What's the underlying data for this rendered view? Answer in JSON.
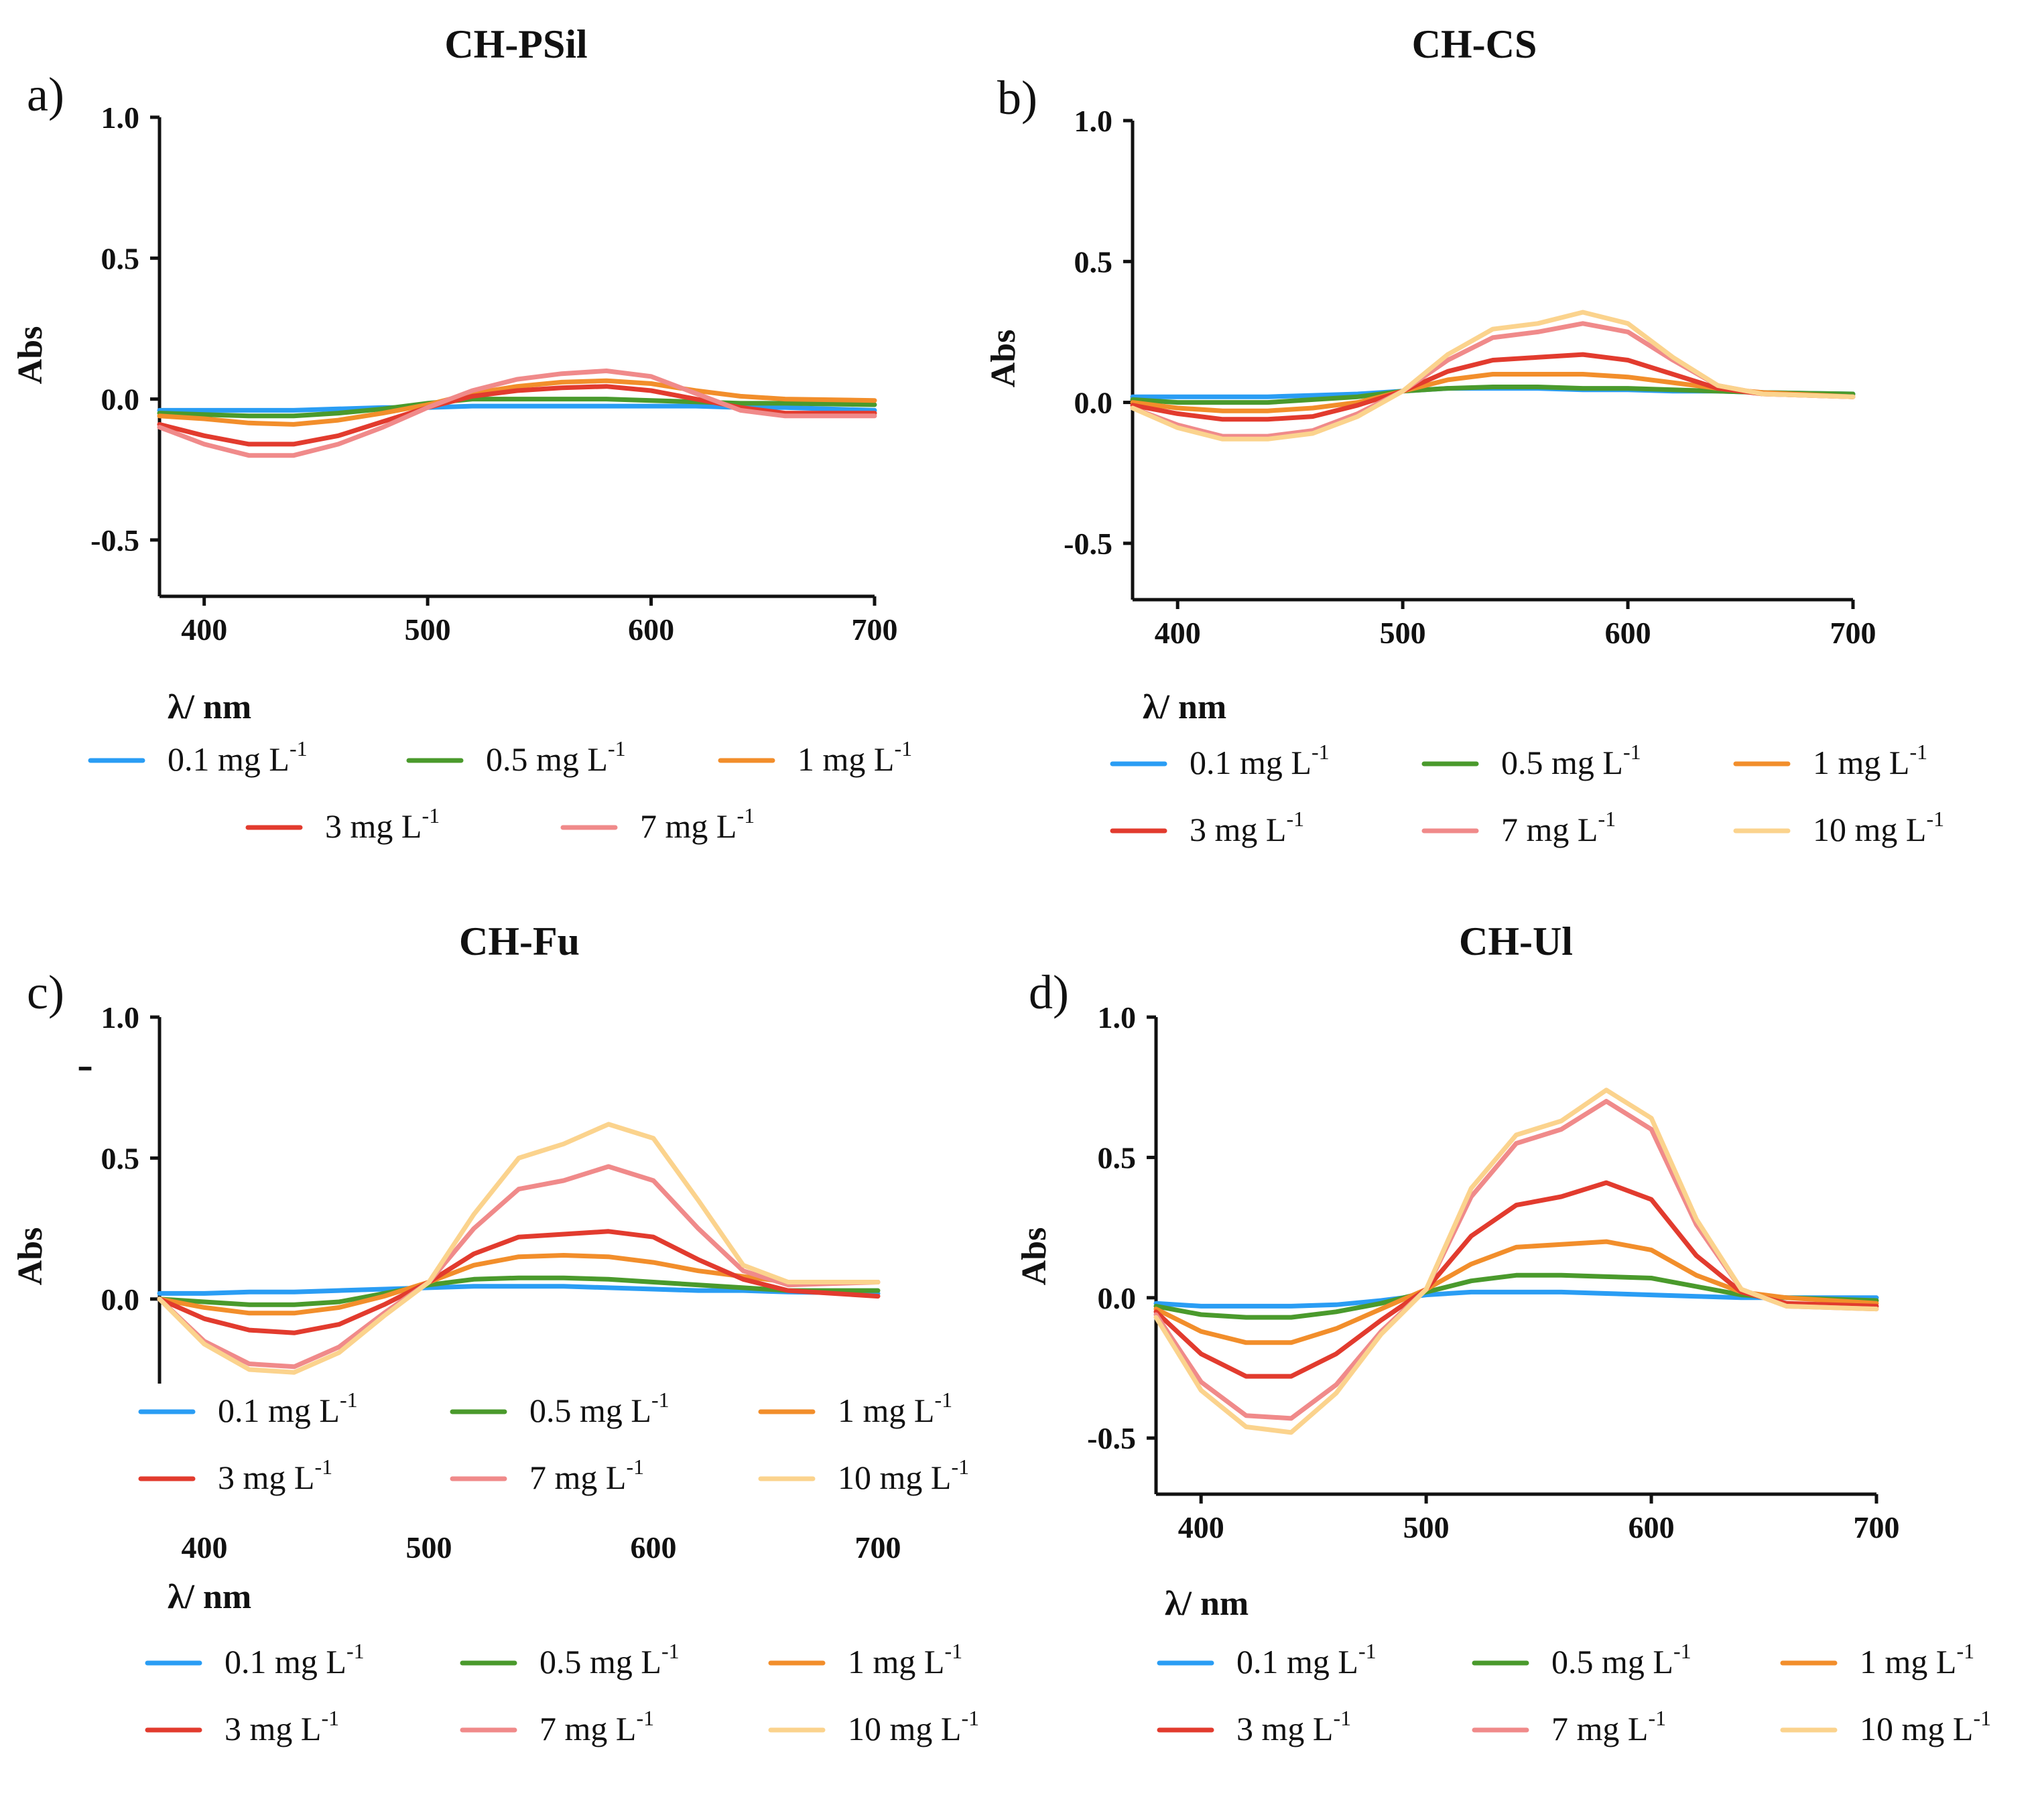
{
  "figure": {
    "stray_mark": "-"
  },
  "chart_data": [
    {
      "panel": "a)",
      "type": "line",
      "title": "CH-PSil",
      "xlabel": "λ/ nm",
      "ylabel": "Abs",
      "xlim": [
        380,
        700
      ],
      "ylim": [
        -0.7,
        1.0
      ],
      "xticks": [
        "400",
        "500",
        "600",
        "700"
      ],
      "yticks": [
        "1.0",
        "0.5",
        "0.0",
        "-0.5"
      ],
      "legend": [
        {
          "text": "0.1 mg L",
          "sup": "-1"
        },
        {
          "text": "0.5 mg L",
          "sup": "-1"
        },
        {
          "text": "1 mg L",
          "sup": "-1"
        },
        {
          "text": "3 mg L",
          "sup": "-1"
        },
        {
          "text": "7 mg L",
          "sup": "-1"
        }
      ],
      "x": [
        380,
        400,
        420,
        440,
        460,
        480,
        500,
        520,
        540,
        560,
        580,
        600,
        620,
        640,
        660,
        700
      ],
      "series": [
        {
          "name": "0.1 mg L-1",
          "color": "#2a9df4",
          "values": [
            -0.04,
            -0.04,
            -0.04,
            -0.04,
            -0.035,
            -0.03,
            -0.03,
            -0.025,
            -0.025,
            -0.025,
            -0.025,
            -0.025,
            -0.025,
            -0.03,
            -0.03,
            -0.04
          ]
        },
        {
          "name": "0.5 mg L-1",
          "color": "#4a9a2c",
          "values": [
            -0.05,
            -0.055,
            -0.06,
            -0.06,
            -0.05,
            -0.035,
            -0.015,
            0.0,
            0.0,
            0.0,
            0.0,
            -0.005,
            -0.01,
            -0.015,
            -0.015,
            -0.02
          ]
        },
        {
          "name": "1 mg L-1",
          "color": "#f28e2b",
          "values": [
            -0.06,
            -0.07,
            -0.085,
            -0.09,
            -0.075,
            -0.05,
            -0.02,
            0.02,
            0.045,
            0.06,
            0.065,
            0.055,
            0.03,
            0.01,
            0.0,
            -0.005
          ]
        },
        {
          "name": "3 mg L-1",
          "color": "#e23b2e",
          "values": [
            -0.09,
            -0.13,
            -0.16,
            -0.16,
            -0.13,
            -0.08,
            -0.03,
            0.01,
            0.03,
            0.04,
            0.045,
            0.03,
            0.0,
            -0.03,
            -0.05,
            -0.05
          ]
        },
        {
          "name": "7 mg L-1",
          "color": "#f08a8a",
          "values": [
            -0.1,
            -0.16,
            -0.2,
            -0.2,
            -0.16,
            -0.1,
            -0.03,
            0.03,
            0.07,
            0.09,
            0.1,
            0.08,
            0.02,
            -0.04,
            -0.06,
            -0.06
          ]
        }
      ]
    },
    {
      "panel": "b)",
      "type": "line",
      "title": "CH-CS",
      "xlabel": "λ/ nm",
      "ylabel": "Abs",
      "xlim": [
        380,
        700
      ],
      "ylim": [
        -0.7,
        1.0
      ],
      "xticks": [
        "400",
        "500",
        "600",
        "700"
      ],
      "yticks": [
        "1.0",
        "0.5",
        "0.0",
        "-0.5"
      ],
      "legend": [
        {
          "text": "0.1 mg L",
          "sup": "-1"
        },
        {
          "text": "0.5 mg L",
          "sup": "-1"
        },
        {
          "text": "1 mg L",
          "sup": "-1"
        },
        {
          "text": "3 mg L",
          "sup": "-1"
        },
        {
          "text": "7 mg L",
          "sup": "-1"
        },
        {
          "text": "10 mg L",
          "sup": "-1"
        }
      ],
      "x": [
        380,
        400,
        420,
        440,
        460,
        480,
        500,
        520,
        540,
        560,
        580,
        600,
        620,
        640,
        660,
        700
      ],
      "series": [
        {
          "name": "0.1 mg L-1",
          "color": "#2a9df4",
          "values": [
            0.02,
            0.02,
            0.02,
            0.02,
            0.025,
            0.03,
            0.04,
            0.05,
            0.05,
            0.05,
            0.045,
            0.045,
            0.04,
            0.04,
            0.035,
            0.03
          ]
        },
        {
          "name": "0.5 mg L-1",
          "color": "#4a9a2c",
          "values": [
            0.01,
            0.0,
            0.0,
            0.0,
            0.01,
            0.02,
            0.04,
            0.05,
            0.055,
            0.055,
            0.05,
            0.05,
            0.045,
            0.04,
            0.035,
            0.03
          ]
        },
        {
          "name": "1 mg L-1",
          "color": "#f28e2b",
          "values": [
            0.0,
            -0.02,
            -0.03,
            -0.03,
            -0.02,
            0.0,
            0.04,
            0.08,
            0.1,
            0.1,
            0.1,
            0.09,
            0.07,
            0.05,
            0.035,
            0.02
          ]
        },
        {
          "name": "3 mg L-1",
          "color": "#e23b2e",
          "values": [
            -0.01,
            -0.04,
            -0.06,
            -0.06,
            -0.05,
            -0.01,
            0.04,
            0.11,
            0.15,
            0.16,
            0.17,
            0.15,
            0.1,
            0.05,
            0.03,
            0.02
          ]
        },
        {
          "name": "7 mg L-1",
          "color": "#f08a8a",
          "values": [
            -0.02,
            -0.08,
            -0.12,
            -0.12,
            -0.1,
            -0.04,
            0.04,
            0.15,
            0.23,
            0.25,
            0.28,
            0.25,
            0.15,
            0.06,
            0.03,
            0.02
          ]
        },
        {
          "name": "10 mg L-1",
          "color": "#fbd38d",
          "values": [
            -0.02,
            -0.09,
            -0.13,
            -0.13,
            -0.11,
            -0.05,
            0.04,
            0.17,
            0.26,
            0.28,
            0.32,
            0.28,
            0.16,
            0.06,
            0.03,
            0.02
          ]
        }
      ]
    },
    {
      "panel": "c)",
      "type": "line",
      "title": "CH-Fu",
      "xlabel": "λ/ nm",
      "ylabel": "Abs",
      "xlim": [
        380,
        700
      ],
      "ylim": [
        -0.3,
        1.0
      ],
      "xticks": [
        "400",
        "500",
        "600",
        "700"
      ],
      "yticks": [
        "1.0",
        "0.5",
        "0.0"
      ],
      "legend": [
        {
          "text": "0.1 mg L",
          "sup": "-1"
        },
        {
          "text": "0.5 mg L",
          "sup": "-1"
        },
        {
          "text": "1 mg L",
          "sup": "-1"
        },
        {
          "text": "3 mg L",
          "sup": "-1"
        },
        {
          "text": "7 mg L",
          "sup": "-1"
        },
        {
          "text": "10 mg L",
          "sup": "-1"
        }
      ],
      "legend2": [
        {
          "text": "0.1 mg L",
          "sup": "-1"
        },
        {
          "text": "0.5 mg L",
          "sup": "-1"
        },
        {
          "text": "1 mg L",
          "sup": "-1"
        },
        {
          "text": "3 mg L",
          "sup": "-1"
        },
        {
          "text": "7 mg L",
          "sup": "-1"
        },
        {
          "text": "10 mg L",
          "sup": "-1"
        }
      ],
      "x": [
        380,
        400,
        420,
        440,
        460,
        480,
        500,
        520,
        540,
        560,
        580,
        600,
        620,
        640,
        660,
        700
      ],
      "series": [
        {
          "name": "0.1 mg L-1",
          "color": "#2a9df4",
          "values": [
            0.02,
            0.02,
            0.025,
            0.025,
            0.03,
            0.035,
            0.04,
            0.045,
            0.045,
            0.045,
            0.04,
            0.035,
            0.03,
            0.03,
            0.025,
            0.02
          ]
        },
        {
          "name": "0.5 mg L-1",
          "color": "#4a9a2c",
          "values": [
            0.0,
            -0.01,
            -0.02,
            -0.02,
            -0.01,
            0.02,
            0.05,
            0.07,
            0.075,
            0.075,
            0.07,
            0.06,
            0.05,
            0.04,
            0.03,
            0.03
          ]
        },
        {
          "name": "1 mg L-1",
          "color": "#f28e2b",
          "values": [
            0.0,
            -0.03,
            -0.05,
            -0.05,
            -0.03,
            0.01,
            0.06,
            0.12,
            0.15,
            0.155,
            0.15,
            0.13,
            0.1,
            0.08,
            0.06,
            0.06
          ]
        },
        {
          "name": "3 mg L-1",
          "color": "#e23b2e",
          "values": [
            0.0,
            -0.07,
            -0.11,
            -0.12,
            -0.09,
            -0.02,
            0.06,
            0.16,
            0.22,
            0.23,
            0.24,
            0.22,
            0.14,
            0.07,
            0.03,
            0.01
          ]
        },
        {
          "name": "7 mg L-1",
          "color": "#f08a8a",
          "values": [
            0.0,
            -0.15,
            -0.23,
            -0.24,
            -0.17,
            -0.05,
            0.06,
            0.25,
            0.39,
            0.42,
            0.47,
            0.42,
            0.25,
            0.1,
            0.05,
            0.06
          ]
        },
        {
          "name": "10 mg L-1",
          "color": "#fbd38d",
          "values": [
            0.0,
            -0.16,
            -0.25,
            -0.26,
            -0.19,
            -0.06,
            0.06,
            0.3,
            0.5,
            0.55,
            0.62,
            0.57,
            0.35,
            0.12,
            0.06,
            0.06
          ]
        }
      ]
    },
    {
      "panel": "d)",
      "type": "line",
      "title": "CH-Ul",
      "xlabel": "λ/ nm",
      "ylabel": "Abs",
      "xlim": [
        380,
        700
      ],
      "ylim": [
        -0.7,
        1.0
      ],
      "xticks": [
        "400",
        "500",
        "600",
        "700"
      ],
      "yticks": [
        "1.0",
        "0.5",
        "0.0",
        "-0.5"
      ],
      "legend": [
        {
          "text": "0.1 mg L",
          "sup": "-1"
        },
        {
          "text": "0.5 mg L",
          "sup": "-1"
        },
        {
          "text": "1 mg L",
          "sup": "-1"
        },
        {
          "text": "3 mg L",
          "sup": "-1"
        },
        {
          "text": "7 mg L",
          "sup": "-1"
        },
        {
          "text": "10 mg L",
          "sup": "-1"
        }
      ],
      "x": [
        380,
        400,
        420,
        440,
        460,
        480,
        500,
        520,
        540,
        560,
        580,
        600,
        620,
        640,
        660,
        700
      ],
      "series": [
        {
          "name": "0.1 mg L-1",
          "color": "#2a9df4",
          "values": [
            -0.02,
            -0.03,
            -0.03,
            -0.03,
            -0.025,
            -0.01,
            0.01,
            0.02,
            0.02,
            0.02,
            0.015,
            0.01,
            0.005,
            0.0,
            0.0,
            0.0
          ]
        },
        {
          "name": "0.5 mg L-1",
          "color": "#4a9a2c",
          "values": [
            -0.03,
            -0.06,
            -0.07,
            -0.07,
            -0.05,
            -0.02,
            0.02,
            0.06,
            0.08,
            0.08,
            0.075,
            0.07,
            0.04,
            0.01,
            0.0,
            -0.01
          ]
        },
        {
          "name": "1 mg L-1",
          "color": "#f28e2b",
          "values": [
            -0.04,
            -0.12,
            -0.16,
            -0.16,
            -0.11,
            -0.04,
            0.03,
            0.12,
            0.18,
            0.19,
            0.2,
            0.17,
            0.08,
            0.02,
            0.0,
            -0.02
          ]
        },
        {
          "name": "3 mg L-1",
          "color": "#e23b2e",
          "values": [
            -0.05,
            -0.2,
            -0.28,
            -0.28,
            -0.2,
            -0.08,
            0.03,
            0.22,
            0.33,
            0.36,
            0.41,
            0.35,
            0.15,
            0.02,
            -0.02,
            -0.03
          ]
        },
        {
          "name": "7 mg L-1",
          "color": "#f08a8a",
          "values": [
            -0.06,
            -0.3,
            -0.42,
            -0.43,
            -0.31,
            -0.12,
            0.03,
            0.36,
            0.55,
            0.6,
            0.7,
            0.6,
            0.26,
            0.03,
            -0.03,
            -0.04
          ]
        },
        {
          "name": "10 mg L-1",
          "color": "#fbd38d",
          "values": [
            -0.07,
            -0.33,
            -0.46,
            -0.48,
            -0.34,
            -0.13,
            0.03,
            0.39,
            0.58,
            0.63,
            0.74,
            0.64,
            0.28,
            0.03,
            -0.03,
            -0.04
          ]
        }
      ]
    }
  ]
}
